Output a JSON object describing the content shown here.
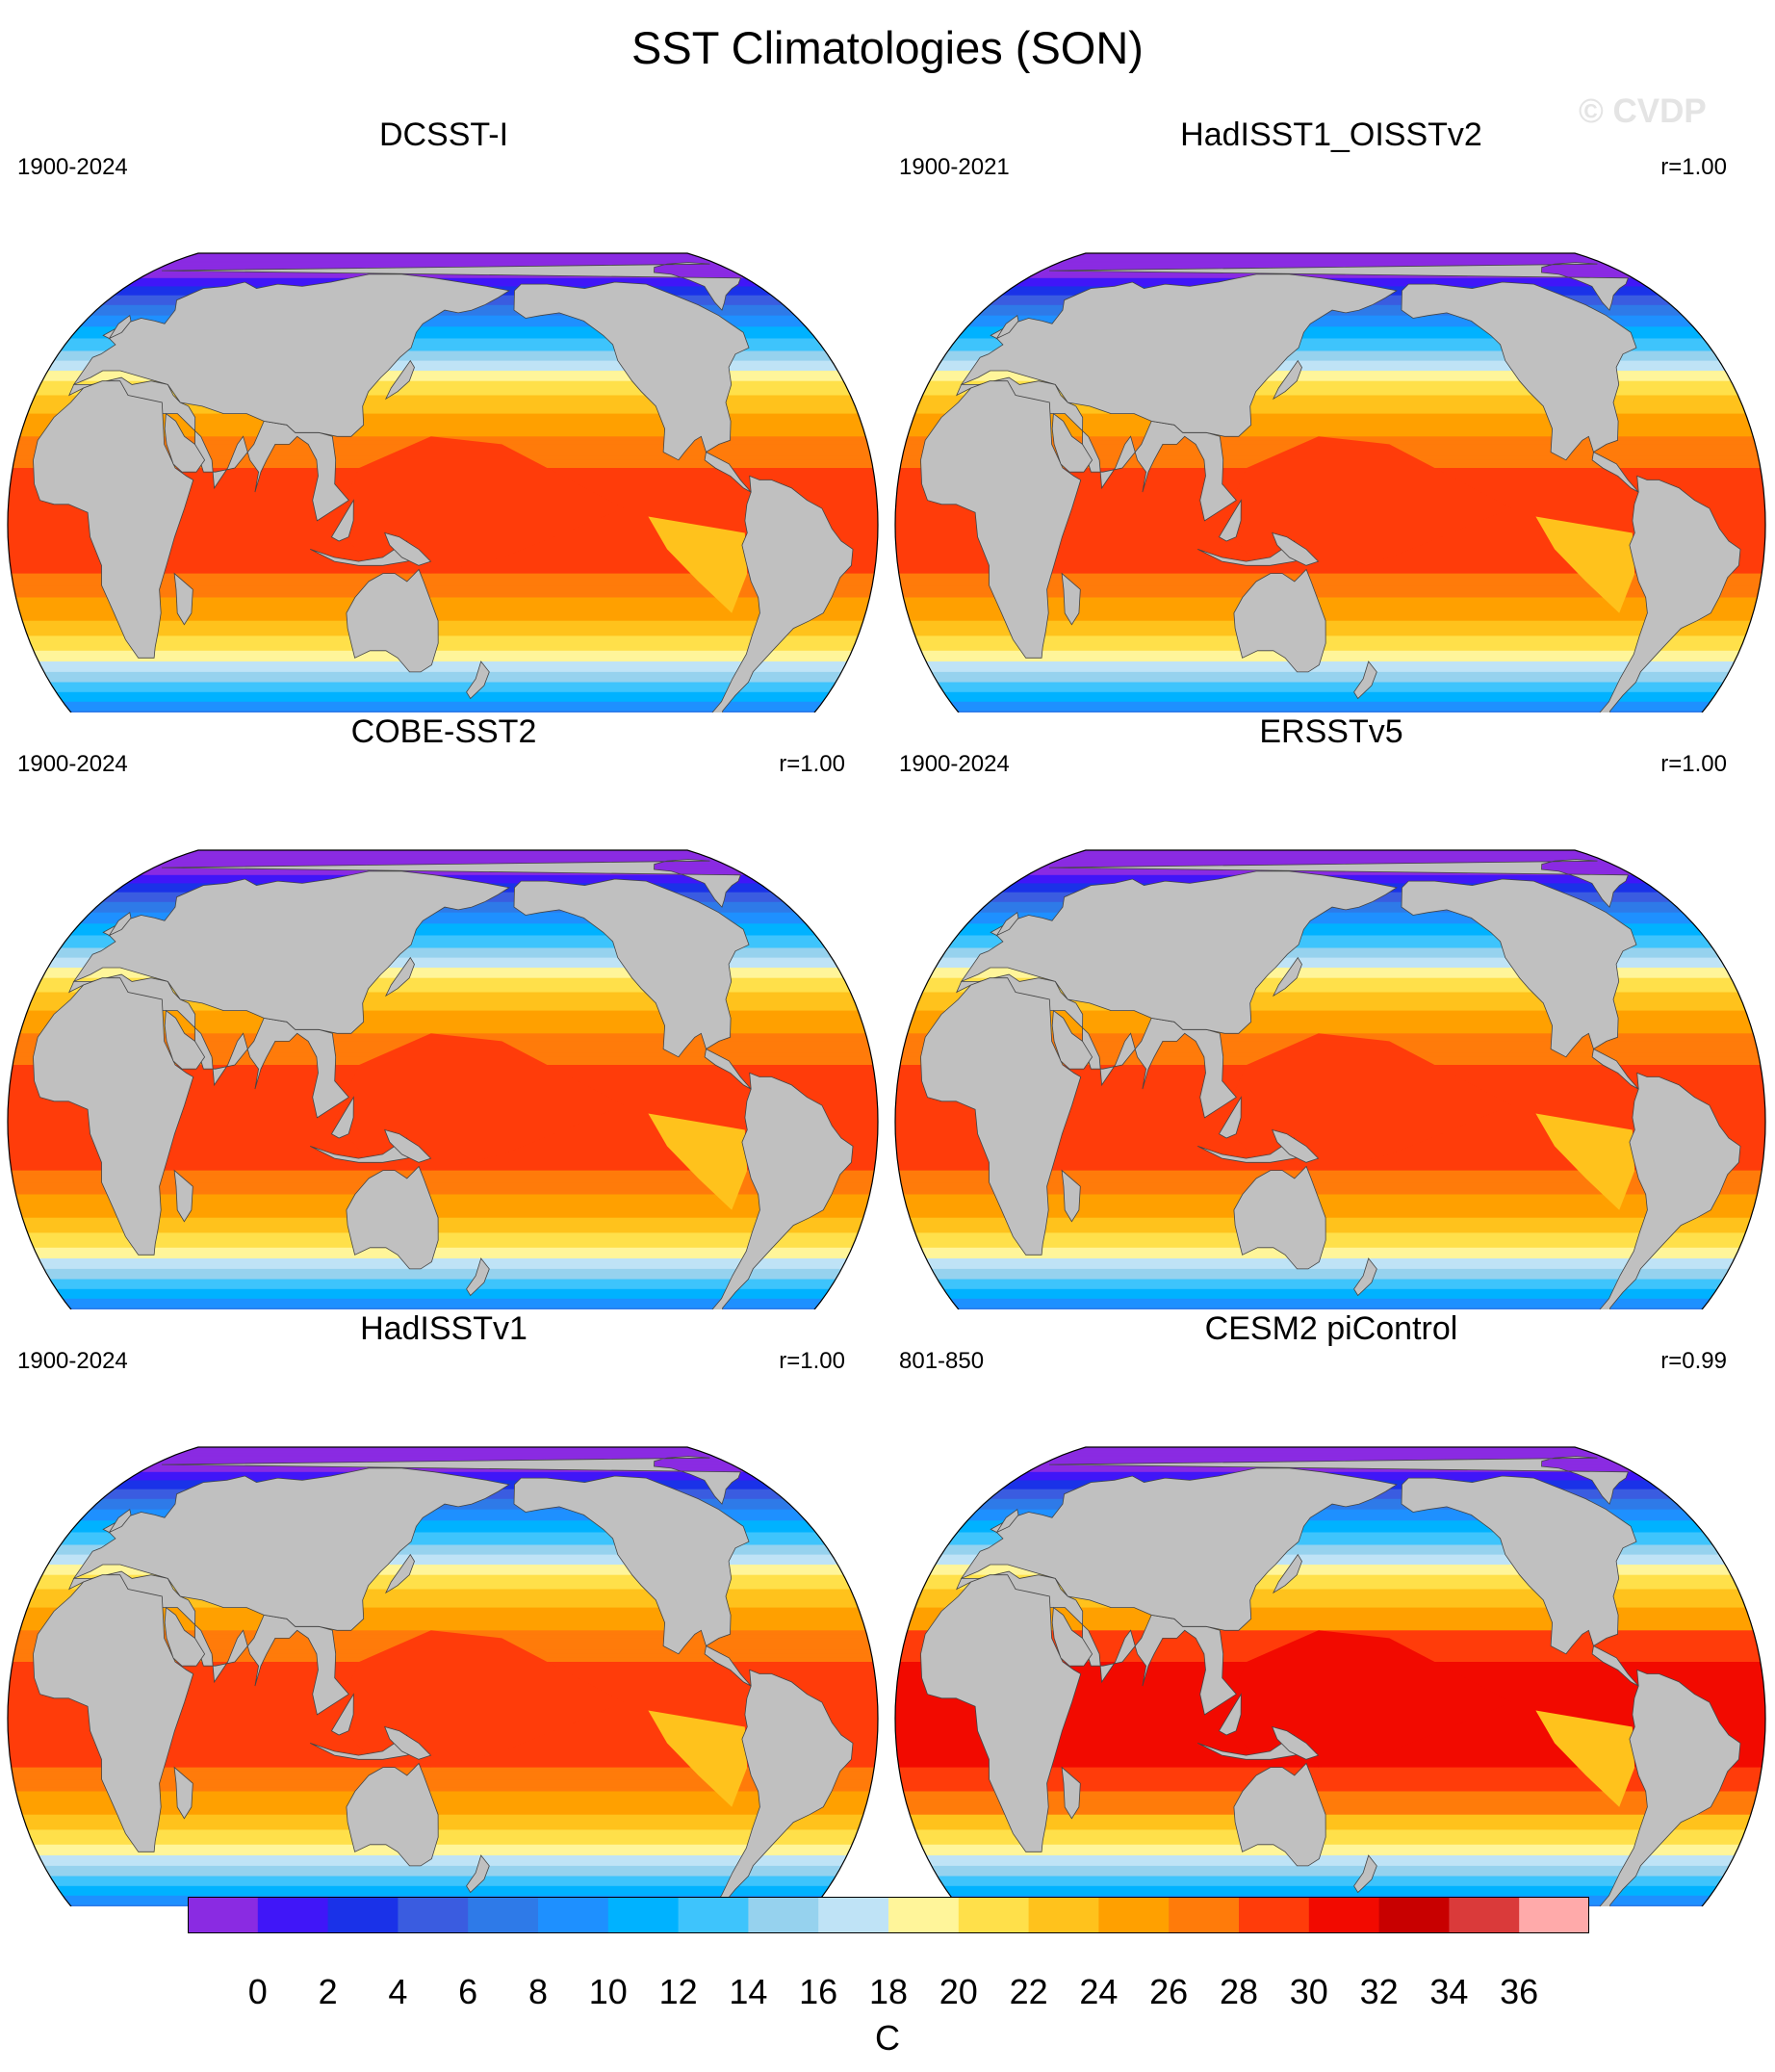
{
  "page": {
    "title": "SST Climatologies (SON)",
    "watermark": "© CVDP"
  },
  "chart_data": {
    "type": "heatmap",
    "projection": "Robinson",
    "title": "SST Climatologies (SON)",
    "units": "C",
    "colorbar": {
      "levels": [
        0,
        2,
        4,
        6,
        8,
        10,
        12,
        14,
        16,
        18,
        20,
        22,
        24,
        26,
        28,
        30,
        32,
        34,
        36
      ],
      "tick_labels": [
        "0",
        "2",
        "4",
        "6",
        "8",
        "10",
        "12",
        "14",
        "16",
        "18",
        "20",
        "22",
        "24",
        "26",
        "28",
        "30",
        "32",
        "34",
        "36"
      ],
      "colors": [
        "#8a2be2",
        "#4016f8",
        "#1a32e8",
        "#3a5ce0",
        "#2e7ae8",
        "#1e90ff",
        "#00b2ff",
        "#3ec4fc",
        "#96d2ee",
        "#bfe3f6",
        "#fff59a",
        "#ffe04a",
        "#ffc21c",
        "#ffa000",
        "#ff7b0a",
        "#ff3c0a",
        "#f20a00",
        "#c80000",
        "#da3a3a",
        "#ffaaaa"
      ]
    },
    "land_color": "#c0c0c0",
    "panels": [
      {
        "name": "DCSST-I",
        "years": "1900-2024",
        "corr": "",
        "peak_level": 28
      },
      {
        "name": "HadISST1_OISSTv2",
        "years": "1900-2021",
        "corr": "r=1.00",
        "peak_level": 28
      },
      {
        "name": "COBE-SST2",
        "years": "1900-2024",
        "corr": "r=1.00",
        "peak_level": 28
      },
      {
        "name": "ERSSTv5",
        "years": "1900-2024",
        "corr": "r=1.00",
        "peak_level": 28
      },
      {
        "name": "HadISSTv1",
        "years": "1900-2024",
        "corr": "r=1.00",
        "peak_level": 28
      },
      {
        "name": "CESM2 piControl",
        "years": "801-850",
        "corr": "r=0.99",
        "peak_level": 30
      }
    ]
  }
}
